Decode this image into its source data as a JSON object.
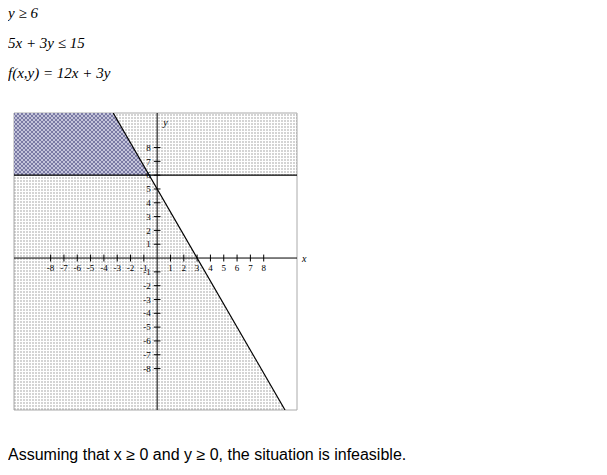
{
  "chart_data": {
    "type": "inequality",
    "texts": [
      "y ≥ 6",
      "5x + 3y ≤ 15",
      "f(x,y) = 12x + 3y"
    ],
    "caption": "Assuming that x ≥ 0 and y ≥ 0, the situation is infeasible.",
    "x_label": "x",
    "y_label": "y",
    "xlim": [
      -10.75,
      10.5
    ],
    "ylim": [
      -11,
      10.5
    ],
    "xticks": [
      -8,
      -7,
      -6,
      -5,
      -4,
      -3,
      -2,
      -1,
      1,
      2,
      3,
      4,
      5,
      6,
      7,
      8
    ],
    "yticks": [
      -8,
      -7,
      -6,
      -5,
      -4,
      -3,
      -2,
      -1,
      1,
      2,
      3,
      4,
      5,
      6,
      7,
      8
    ],
    "regions": [
      {
        "x": [
          -10.75,
          10.5
        ],
        "values": [
          10.5,
          10.5
        ],
        "base": 6,
        "color": "#888888"
      },
      {
        "x": [
          -10.75,
          -3.3,
          9.6
        ],
        "values": [
          10.5,
          10.5,
          -11
        ],
        "base": -11,
        "color": "#888888"
      },
      {
        "x": [
          -10.75,
          -3.3,
          -0.6
        ],
        "values": [
          10.5,
          10.5,
          6
        ],
        "base": 6,
        "color": "#5a5a8c"
      }
    ],
    "series": [
      {
        "x": [
          -10.75,
          10.5
        ],
        "values": [
          6,
          6
        ],
        "color": "#000000"
      },
      {
        "x": [
          -3.3,
          9.6
        ],
        "values": [
          10.5,
          -11
        ],
        "color": "#000000"
      }
    ]
  }
}
